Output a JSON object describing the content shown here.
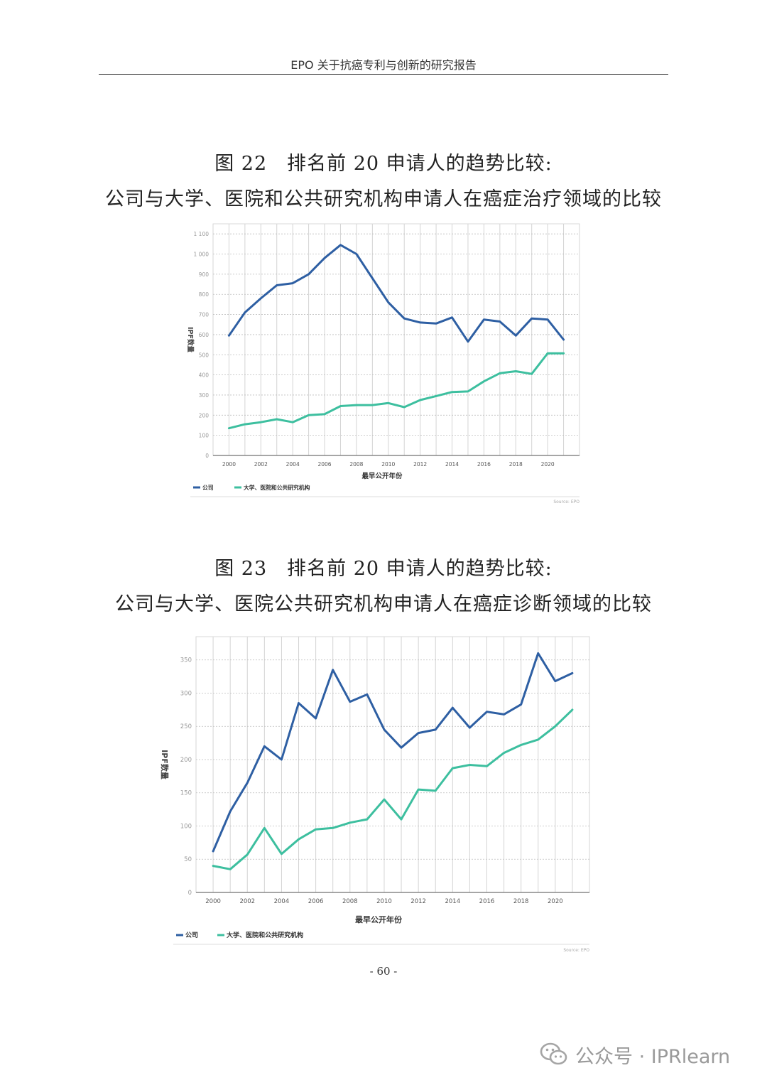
{
  "header": {
    "title": "EPO 关于抗癌专利与创新的研究报告"
  },
  "figures": [
    {
      "title_line1": "图 22　排名前 20 申请人的趋势比较:",
      "title_line2": "公司与大学、医院和公共研究机构申请人在癌症治疗领域的比较"
    },
    {
      "title_line1": "图 23　排名前 20 申请人的趋势比较:",
      "title_line2": "公司与大学、医院公共研究机构申请人在癌症诊断领域的比较"
    }
  ],
  "chart_data": [
    {
      "type": "line",
      "title": "",
      "xlabel": "最早公开年份",
      "ylabel": "IPF数量",
      "x": [
        2000,
        2001,
        2002,
        2003,
        2004,
        2005,
        2006,
        2007,
        2008,
        2009,
        2010,
        2011,
        2012,
        2013,
        2014,
        2015,
        2016,
        2017,
        2018,
        2019,
        2020,
        2021
      ],
      "xlim": [
        1999,
        2022
      ],
      "x_ticks": [
        "2000",
        "2002",
        "2004",
        "2006",
        "2008",
        "2010",
        "2012",
        "2014",
        "2016",
        "2018",
        "2020"
      ],
      "x_tick_values": [
        2000,
        2002,
        2004,
        2006,
        2008,
        2010,
        2012,
        2014,
        2016,
        2018,
        2020
      ],
      "y_ticks": [
        "0",
        "100",
        "200",
        "300",
        "400",
        "500",
        "600",
        "700",
        "800",
        "900",
        "1 000",
        "1 100"
      ],
      "y_tick_values": [
        0,
        100,
        200,
        300,
        400,
        500,
        600,
        700,
        800,
        900,
        1000,
        1100
      ],
      "ylim": [
        0,
        1150
      ],
      "grid": true,
      "legend_position": "bottom-left",
      "source": "Source: EPO",
      "series": [
        {
          "name": "公司",
          "color": "#2e5fa3",
          "values": [
            595,
            710,
            780,
            845,
            855,
            900,
            980,
            1045,
            1000,
            880,
            760,
            680,
            660,
            655,
            685,
            565,
            675,
            665,
            595,
            680,
            675,
            575
          ]
        },
        {
          "name": "大学、医院和公共研究机构",
          "color": "#3dbf9f",
          "values": [
            135,
            155,
            165,
            180,
            165,
            200,
            205,
            245,
            250,
            250,
            260,
            240,
            275,
            295,
            315,
            318,
            368,
            408,
            418,
            405,
            507,
            507
          ]
        }
      ]
    },
    {
      "type": "line",
      "title": "",
      "xlabel": "最早公开年份",
      "ylabel": "IPF数量",
      "x": [
        2000,
        2001,
        2002,
        2003,
        2004,
        2005,
        2006,
        2007,
        2008,
        2009,
        2010,
        2011,
        2012,
        2013,
        2014,
        2015,
        2016,
        2017,
        2018,
        2019,
        2020,
        2021
      ],
      "xlim": [
        1999,
        2022
      ],
      "x_ticks": [
        "2000",
        "2002",
        "2004",
        "2006",
        "2008",
        "2010",
        "2012",
        "2014",
        "2016",
        "2018",
        "2020"
      ],
      "x_tick_values": [
        2000,
        2002,
        2004,
        2006,
        2008,
        2010,
        2012,
        2014,
        2016,
        2018,
        2020
      ],
      "y_ticks": [
        "0",
        "50",
        "100",
        "150",
        "200",
        "250",
        "300",
        "350"
      ],
      "y_tick_values": [
        0,
        50,
        100,
        150,
        200,
        250,
        300,
        350
      ],
      "ylim": [
        0,
        385
      ],
      "grid": true,
      "legend_position": "bottom-left",
      "source": "Source: EPO",
      "series": [
        {
          "name": "公司",
          "color": "#2e5fa3",
          "values": [
            62,
            122,
            165,
            220,
            200,
            285,
            262,
            335,
            287,
            298,
            245,
            218,
            240,
            245,
            278,
            248,
            272,
            268,
            283,
            360,
            318,
            330
          ]
        },
        {
          "name": "大学、医院和公共研究机构",
          "color": "#3dbf9f",
          "values": [
            40,
            35,
            57,
            97,
            58,
            80,
            95,
            97,
            105,
            110,
            140,
            110,
            155,
            153,
            187,
            192,
            190,
            210,
            222,
            230,
            250,
            275
          ]
        }
      ]
    }
  ],
  "page": {
    "number": "- 60 -"
  },
  "watermark": {
    "text": "公众号 · IPRlearn",
    "icon": "wechat-icon"
  }
}
